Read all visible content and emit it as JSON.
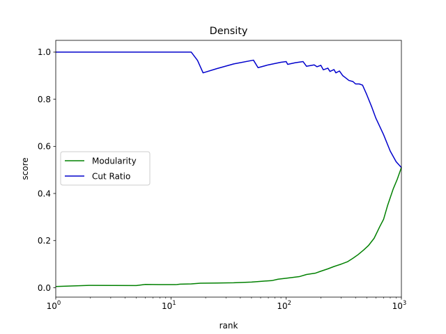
{
  "chart_data": {
    "type": "line",
    "title": "Density",
    "xlabel": "rank",
    "ylabel": "score",
    "xscale": "log",
    "xlim": [
      1,
      1000
    ],
    "ylim": [
      -0.04,
      1.05
    ],
    "x_ticks": [
      {
        "value": 1,
        "base": "10",
        "exp": "0"
      },
      {
        "value": 10,
        "base": "10",
        "exp": "1"
      },
      {
        "value": 100,
        "base": "10",
        "exp": "2"
      },
      {
        "value": 1000,
        "base": "10",
        "exp": "3"
      }
    ],
    "y_ticks": [
      {
        "value": 0.0,
        "label": "0.0"
      },
      {
        "value": 0.2,
        "label": "0.2"
      },
      {
        "value": 0.4,
        "label": "0.4"
      },
      {
        "value": 0.6,
        "label": "0.6"
      },
      {
        "value": 0.8,
        "label": "0.8"
      },
      {
        "value": 1.0,
        "label": "1.0"
      }
    ],
    "grid": false,
    "legend_position": "center-left",
    "series": [
      {
        "name": "Modularity",
        "color": "#008000",
        "points": [
          [
            1,
            0.005
          ],
          [
            2,
            0.01
          ],
          [
            5,
            0.009
          ],
          [
            6,
            0.014
          ],
          [
            8,
            0.013
          ],
          [
            11,
            0.013
          ],
          [
            12,
            0.015
          ],
          [
            15,
            0.016
          ],
          [
            18,
            0.019
          ],
          [
            25,
            0.02
          ],
          [
            35,
            0.021
          ],
          [
            50,
            0.024
          ],
          [
            60,
            0.027
          ],
          [
            75,
            0.03
          ],
          [
            85,
            0.036
          ],
          [
            100,
            0.04
          ],
          [
            130,
            0.047
          ],
          [
            150,
            0.056
          ],
          [
            180,
            0.062
          ],
          [
            200,
            0.07
          ],
          [
            230,
            0.08
          ],
          [
            260,
            0.09
          ],
          [
            300,
            0.1
          ],
          [
            340,
            0.11
          ],
          [
            380,
            0.125
          ],
          [
            420,
            0.14
          ],
          [
            470,
            0.16
          ],
          [
            520,
            0.18
          ],
          [
            580,
            0.21
          ],
          [
            650,
            0.26
          ],
          [
            700,
            0.29
          ],
          [
            760,
            0.35
          ],
          [
            850,
            0.42
          ],
          [
            920,
            0.46
          ],
          [
            1000,
            0.51
          ]
        ]
      },
      {
        "name": "Cut Ratio",
        "color": "#0000cc",
        "points": [
          [
            1,
            1.0
          ],
          [
            15,
            1.0
          ],
          [
            17,
            0.965
          ],
          [
            19,
            0.912
          ],
          [
            25,
            0.93
          ],
          [
            35,
            0.95
          ],
          [
            52,
            0.966
          ],
          [
            57,
            0.934
          ],
          [
            70,
            0.946
          ],
          [
            90,
            0.957
          ],
          [
            100,
            0.96
          ],
          [
            103,
            0.948
          ],
          [
            120,
            0.955
          ],
          [
            140,
            0.96
          ],
          [
            150,
            0.94
          ],
          [
            175,
            0.946
          ],
          [
            185,
            0.938
          ],
          [
            200,
            0.944
          ],
          [
            210,
            0.925
          ],
          [
            230,
            0.932
          ],
          [
            240,
            0.918
          ],
          [
            260,
            0.926
          ],
          [
            270,
            0.912
          ],
          [
            290,
            0.92
          ],
          [
            310,
            0.9
          ],
          [
            330,
            0.89
          ],
          [
            350,
            0.88
          ],
          [
            380,
            0.875
          ],
          [
            400,
            0.865
          ],
          [
            430,
            0.865
          ],
          [
            460,
            0.86
          ],
          [
            500,
            0.82
          ],
          [
            550,
            0.77
          ],
          [
            600,
            0.72
          ],
          [
            700,
            0.65
          ],
          [
            800,
            0.58
          ],
          [
            900,
            0.535
          ],
          [
            1000,
            0.51
          ]
        ]
      }
    ]
  }
}
